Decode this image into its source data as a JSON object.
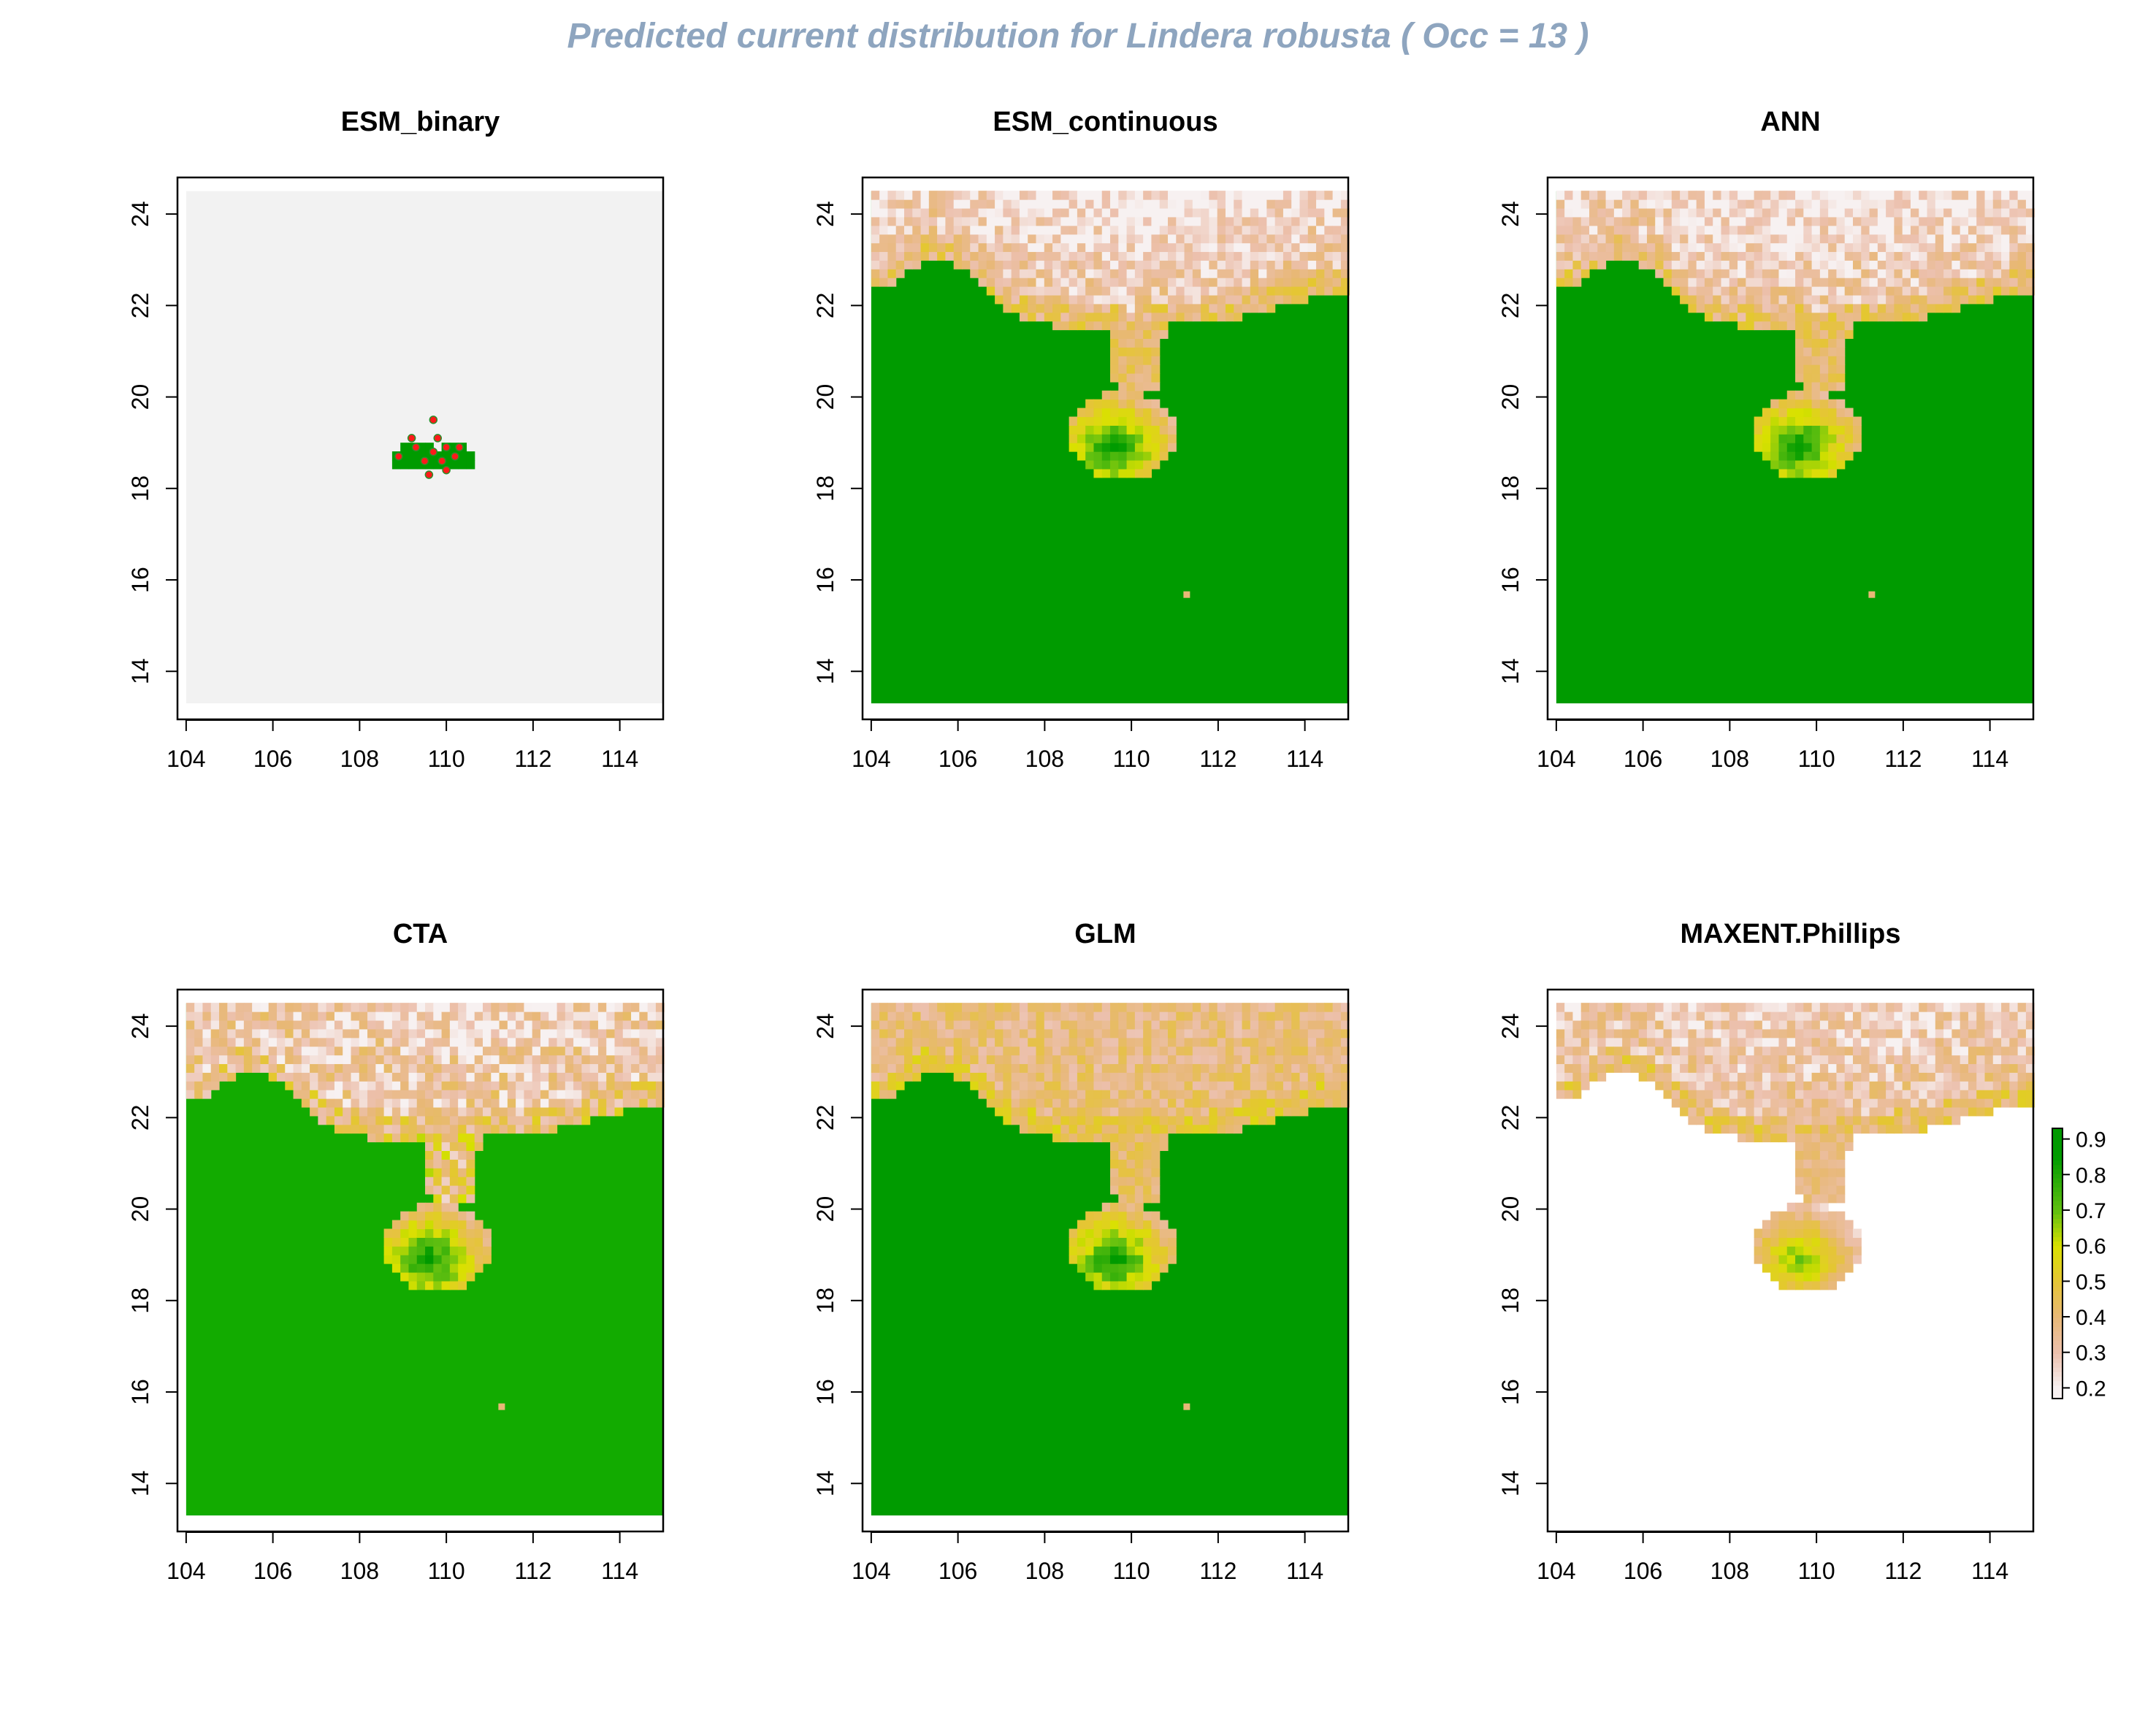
{
  "title": "Predicted current distribution for Lindera robusta  ( Occ =  13  )",
  "colors": {
    "title": "#8ea5bf",
    "background_gray": "#f2f2f2",
    "low": "#f7f1f1",
    "mid_low": "#ecc0ad",
    "mid": "#e8b877",
    "mid_high": "#e5c535",
    "high_yellow": "#d9e100",
    "high_green": "#5fbf10",
    "top_green": "#009b00",
    "occurrence_point": "#ff1a1a"
  },
  "chart_data": [
    {
      "type": "heatmap",
      "title": "ESM_binary",
      "xlim": [
        104,
        115
      ],
      "ylim": [
        13.3,
        24.5
      ],
      "xticks": [
        "104",
        "106",
        "108",
        "110",
        "112",
        "114"
      ],
      "yticks": [
        "14",
        "16",
        "18",
        "20",
        "22",
        "24"
      ],
      "values": "binary presence (0/1)",
      "occurrence_points": [
        [
          109.2,
          19.1
        ],
        [
          109.7,
          19.5
        ],
        [
          109.8,
          19.1
        ],
        [
          110.0,
          18.9
        ],
        [
          110.2,
          18.7
        ],
        [
          109.5,
          18.6
        ],
        [
          109.7,
          18.8
        ],
        [
          109.9,
          18.6
        ],
        [
          110.0,
          18.4
        ],
        [
          108.9,
          18.7
        ],
        [
          109.6,
          18.3
        ],
        [
          110.3,
          18.9
        ],
        [
          109.3,
          18.9
        ]
      ]
    },
    {
      "type": "heatmap",
      "title": "ESM_continuous",
      "xlim": [
        104,
        115
      ],
      "ylim": [
        13.3,
        24.5
      ],
      "xticks": [
        "104",
        "106",
        "108",
        "110",
        "112",
        "114"
      ],
      "yticks": [
        "14",
        "16",
        "18",
        "20",
        "22",
        "24"
      ],
      "values": "continuous suitability (0.2-0.9)"
    },
    {
      "type": "heatmap",
      "title": "ANN",
      "xlim": [
        104,
        115
      ],
      "ylim": [
        13.3,
        24.5
      ],
      "xticks": [
        "104",
        "106",
        "108",
        "110",
        "112",
        "114"
      ],
      "yticks": [
        "14",
        "16",
        "18",
        "20",
        "22",
        "24"
      ],
      "values": "continuous suitability (0.2-0.9)"
    },
    {
      "type": "heatmap",
      "title": "CTA",
      "xlim": [
        104,
        115
      ],
      "ylim": [
        13.3,
        24.5
      ],
      "xticks": [
        "104",
        "106",
        "108",
        "110",
        "112",
        "114"
      ],
      "yticks": [
        "14",
        "16",
        "18",
        "20",
        "22",
        "24"
      ],
      "values": "continuous suitability (0.2-0.9)"
    },
    {
      "type": "heatmap",
      "title": "GLM",
      "xlim": [
        104,
        115
      ],
      "ylim": [
        13.3,
        24.5
      ],
      "xticks": [
        "104",
        "106",
        "108",
        "110",
        "112",
        "114"
      ],
      "yticks": [
        "14",
        "16",
        "18",
        "20",
        "22",
        "24"
      ],
      "values": "continuous suitability (0.2-0.9)"
    },
    {
      "type": "heatmap",
      "title": "MAXENT.Phillips",
      "xlim": [
        104,
        115
      ],
      "ylim": [
        13.3,
        24.5
      ],
      "xticks": [
        "104",
        "106",
        "108",
        "110",
        "112",
        "114"
      ],
      "yticks": [
        "14",
        "16",
        "18",
        "20",
        "22",
        "24"
      ],
      "values": "continuous suitability (0.2-0.9)",
      "legend": {
        "labels": [
          "0.9",
          "0.8",
          "0.7",
          "0.6",
          "0.5",
          "0.4",
          "0.3",
          "0.2"
        ],
        "values": [
          0.9,
          0.8,
          0.7,
          0.6,
          0.5,
          0.4,
          0.3,
          0.2
        ]
      }
    }
  ]
}
